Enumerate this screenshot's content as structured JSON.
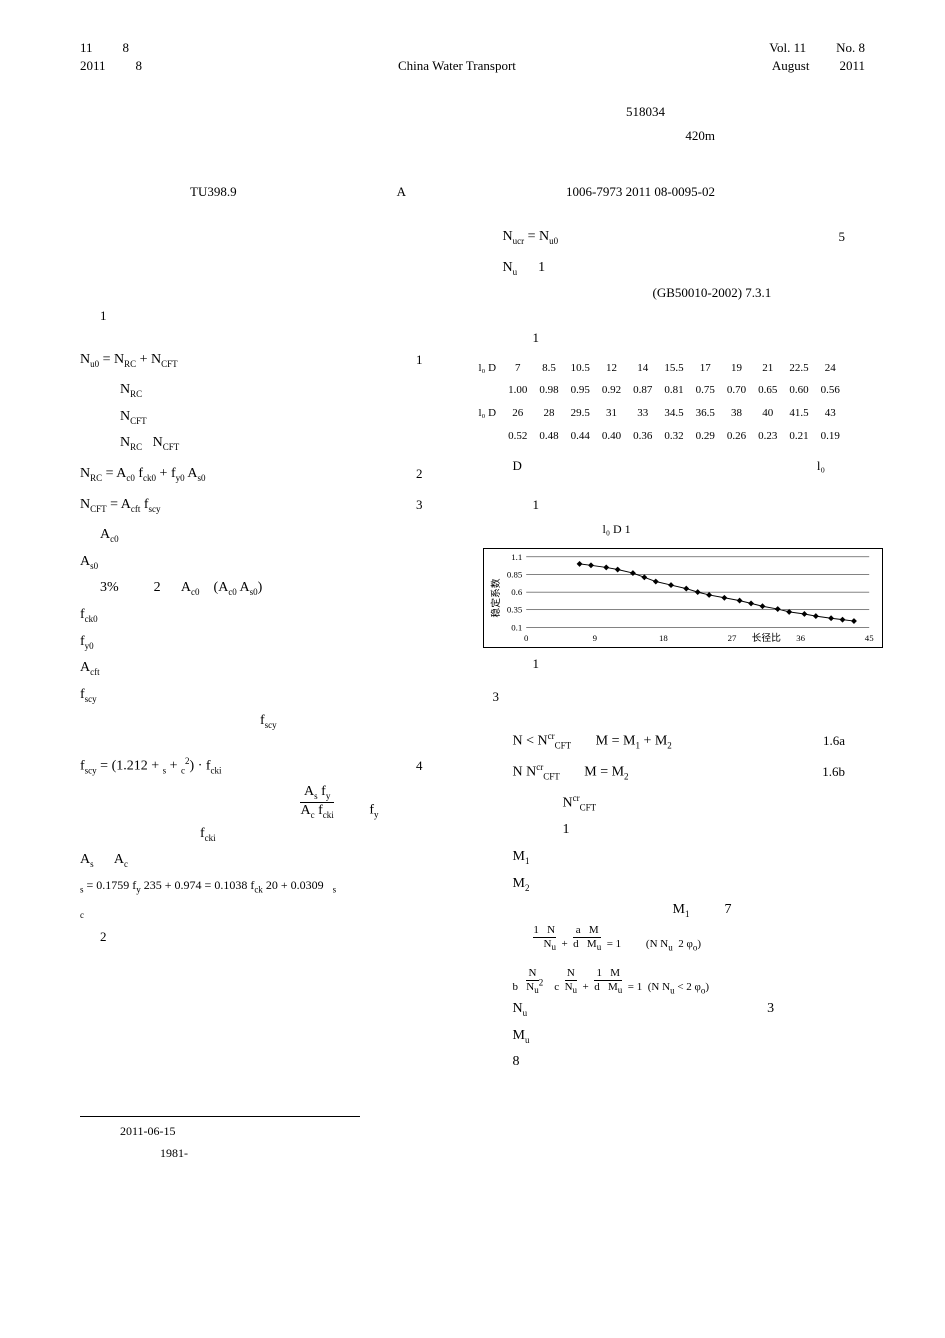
{
  "header": {
    "vol_cn_left": "11",
    "vol_cn_right": "8",
    "year_left": "2011",
    "year_right": "8",
    "journal_en": "China Water Transport",
    "vol_en": "Vol. 11",
    "no_en": "No. 8",
    "month_en": "August",
    "year_en": "2011"
  },
  "meta": {
    "zip": "518034",
    "height": "420m"
  },
  "classify": {
    "tu": "TU398.9",
    "doc": "A",
    "issn": "1006-7973  2011  08-0095-02"
  },
  "left": {
    "sec1": "1",
    "eq1": {
      "body": "N",
      "sub1": "u0",
      "mid": " = N",
      "sub2": "RC",
      "mid2": " + N",
      "sub3": "CFT",
      "no": "1"
    },
    "line_nrc": "N",
    "line_nrc_sub": "RC",
    "line_ncft": "N",
    "line_ncft_sub": "CFT",
    "line_both": "N",
    "eq2": {
      "lhs": "N",
      "lsub": "RC",
      "body": " = A",
      "s1": "c0",
      "m1": " f",
      "s2": "ck0",
      "m2": " + f",
      "s3": "y0",
      "m3": " A",
      "s4": "s0",
      "no": "2"
    },
    "eq3": {
      "lhs": "N",
      "lsub": "CFT",
      "body": " = A",
      "s1": "cft",
      "m1": " f",
      "s2": "scy",
      "no": "3"
    },
    "Ac0": "A",
    "Ac0_sub": "c0",
    "As0": "A",
    "As0_sub": "s0",
    "pct": "3%",
    "two": "2",
    "Ac0b": "A",
    "Ac0b_sub": "c0",
    "paren_l": "(A",
    "paren_l_sub": "c0",
    "paren_r": "   A",
    "paren_r_sub": "s0",
    "paren_close": ")",
    "fck0": "f",
    "fck0_sub": "ck0",
    "fy0": "f",
    "fy0_sub": "y0",
    "Acft": "A",
    "Acft_sub": "cft",
    "fscy": "f",
    "fscy_sub": "scy",
    "fscy2": "f",
    "fscy2_sub": "scy",
    "eq4": {
      "body": "f",
      "s1": "scy",
      "m1": " = (1.212 + ",
      "m2": " + ",
      "m3": ") · f",
      "s3": "cki",
      "no": "4",
      "frac_top": "A",
      "ft_sub": "s",
      "frac_top2": " f",
      "ft2_sub": "y",
      "frac_bot": "A",
      "fb_sub": "c",
      "frac_bot2": " f",
      "fb2_sub": "cki",
      "fy": "f",
      "fy_sub": "y"
    },
    "fcki": "f",
    "fcki_sub": "cki",
    "As": "A",
    "As_sub": "s",
    "Ac": "A",
    "Ac_sub": "c",
    "eq_s": "  = 0.1759 f",
    "eq_s_sub": "y",
    "eq_s2": "  235 + 0.974       = 0.1038 f",
    "eq_s2_sub": "ck",
    "eq_s3": "  20 + 0.0309",
    "sec2": "2"
  },
  "right": {
    "eq5": {
      "l": "N",
      "ls": "ucr",
      "m": " =    N",
      "ms": "u0",
      "no": "5"
    },
    "Nu": "N",
    "Nu_sub": "u",
    "one": "1",
    "gb": "(GB50010-2002)   7.3.1",
    "tbl_caption": "1",
    "table": {
      "row1_hdr": "l₀  D",
      "row1": [
        "7",
        "8.5",
        "10.5",
        "12",
        "14",
        "15.5",
        "17",
        "19",
        "21",
        "22.5",
        "24"
      ],
      "row2": [
        "1.00",
        "0.98",
        "0.95",
        "0.92",
        "0.87",
        "0.81",
        "0.75",
        "0.70",
        "0.65",
        "0.60",
        "0.56"
      ],
      "row3_hdr": "l₀  D",
      "row3": [
        "26",
        "28",
        "29.5",
        "31",
        "33",
        "34.5",
        "36.5",
        "38",
        "40",
        "41.5",
        "43"
      ],
      "row4": [
        "0.52",
        "0.48",
        "0.44",
        "0.40",
        "0.36",
        "0.32",
        "0.29",
        "0.26",
        "0.23",
        "0.21",
        "0.19"
      ],
      "note_D": "D",
      "note_l0": "l₀"
    },
    "fig_cap_top": "1",
    "chart": {
      "x_title": "长径比",
      "y_title": "稳定系数",
      "x_ticks": [
        "0",
        "9",
        "18",
        "27",
        "36",
        "45"
      ],
      "y_ticks": [
        "0.1",
        "0.35",
        "0.6",
        "0.85",
        "1.1"
      ],
      "series_x": [
        7,
        8.5,
        10.5,
        12,
        14,
        15.5,
        17,
        19,
        21,
        22.5,
        24,
        26,
        28,
        29.5,
        31,
        33,
        34.5,
        36.5,
        38,
        40,
        41.5,
        43
      ],
      "series_y": [
        1.0,
        0.98,
        0.95,
        0.92,
        0.87,
        0.81,
        0.75,
        0.7,
        0.65,
        0.6,
        0.56,
        0.52,
        0.48,
        0.44,
        0.4,
        0.36,
        0.32,
        0.29,
        0.26,
        0.23,
        0.21,
        0.19
      ],
      "xlim": [
        0,
        45
      ],
      "ylim": [
        0.1,
        1.1
      ],
      "line_color": "#000000",
      "grid_color": "#000000"
    },
    "chart_hdr": "l₀  D                            1",
    "fig_caption": "1",
    "sec3": "3",
    "eq6a": {
      "l": "N < N",
      "ls": "CFT",
      "lp": "cr",
      "m": "M = M",
      "ms": "1",
      "m2": " + M",
      "ms2": "2",
      "no": "1.6a"
    },
    "eq6b": {
      "l": "N    N",
      "ls": "CFT",
      "lp": "cr",
      "m": "M = M",
      "ms": "2",
      "no": "1.6b"
    },
    "Ncft_cr": "N",
    "Ncft_cr_sub": "CFT",
    "Ncft_cr_sup": "cr",
    "one_b": "1",
    "M1": "M",
    "M1_sub": "1",
    "M2": "M",
    "M2_sub": "2",
    "M1b": "M",
    "M1b_sub": "1",
    "seven": "7",
    "eq7a": {
      "body": "1   N        a    M",
      "body2": "N",
      "s2": "u",
      "body3": "  +  d   M",
      "s3": "u",
      "body4": " = 1",
      "cond": "(N N",
      "cond_s": "u",
      "cond2": "  2 φ",
      "cond3": ")"
    },
    "eq7b_label": "b",
    "eq7b": {
      "body": "N",
      "body_top": "2",
      "body2": "N",
      "s2": "u",
      "body3": "    c    N",
      "body4": "N",
      "s4": "u",
      "body5": " +  1   M",
      "body6": "d   M",
      "s6": "u",
      "body7": " = 1",
      "cond": "(N N",
      "cond_s": "u",
      "cond2": " < 2 φ",
      "cond3": ")"
    },
    "Nu2": "N",
    "Nu2_sub": "u",
    "three": "3",
    "Mu": "M",
    "Mu_sub": "u",
    "eight": "8"
  },
  "footer": {
    "date": "2011-06-15",
    "year": "1981-"
  }
}
